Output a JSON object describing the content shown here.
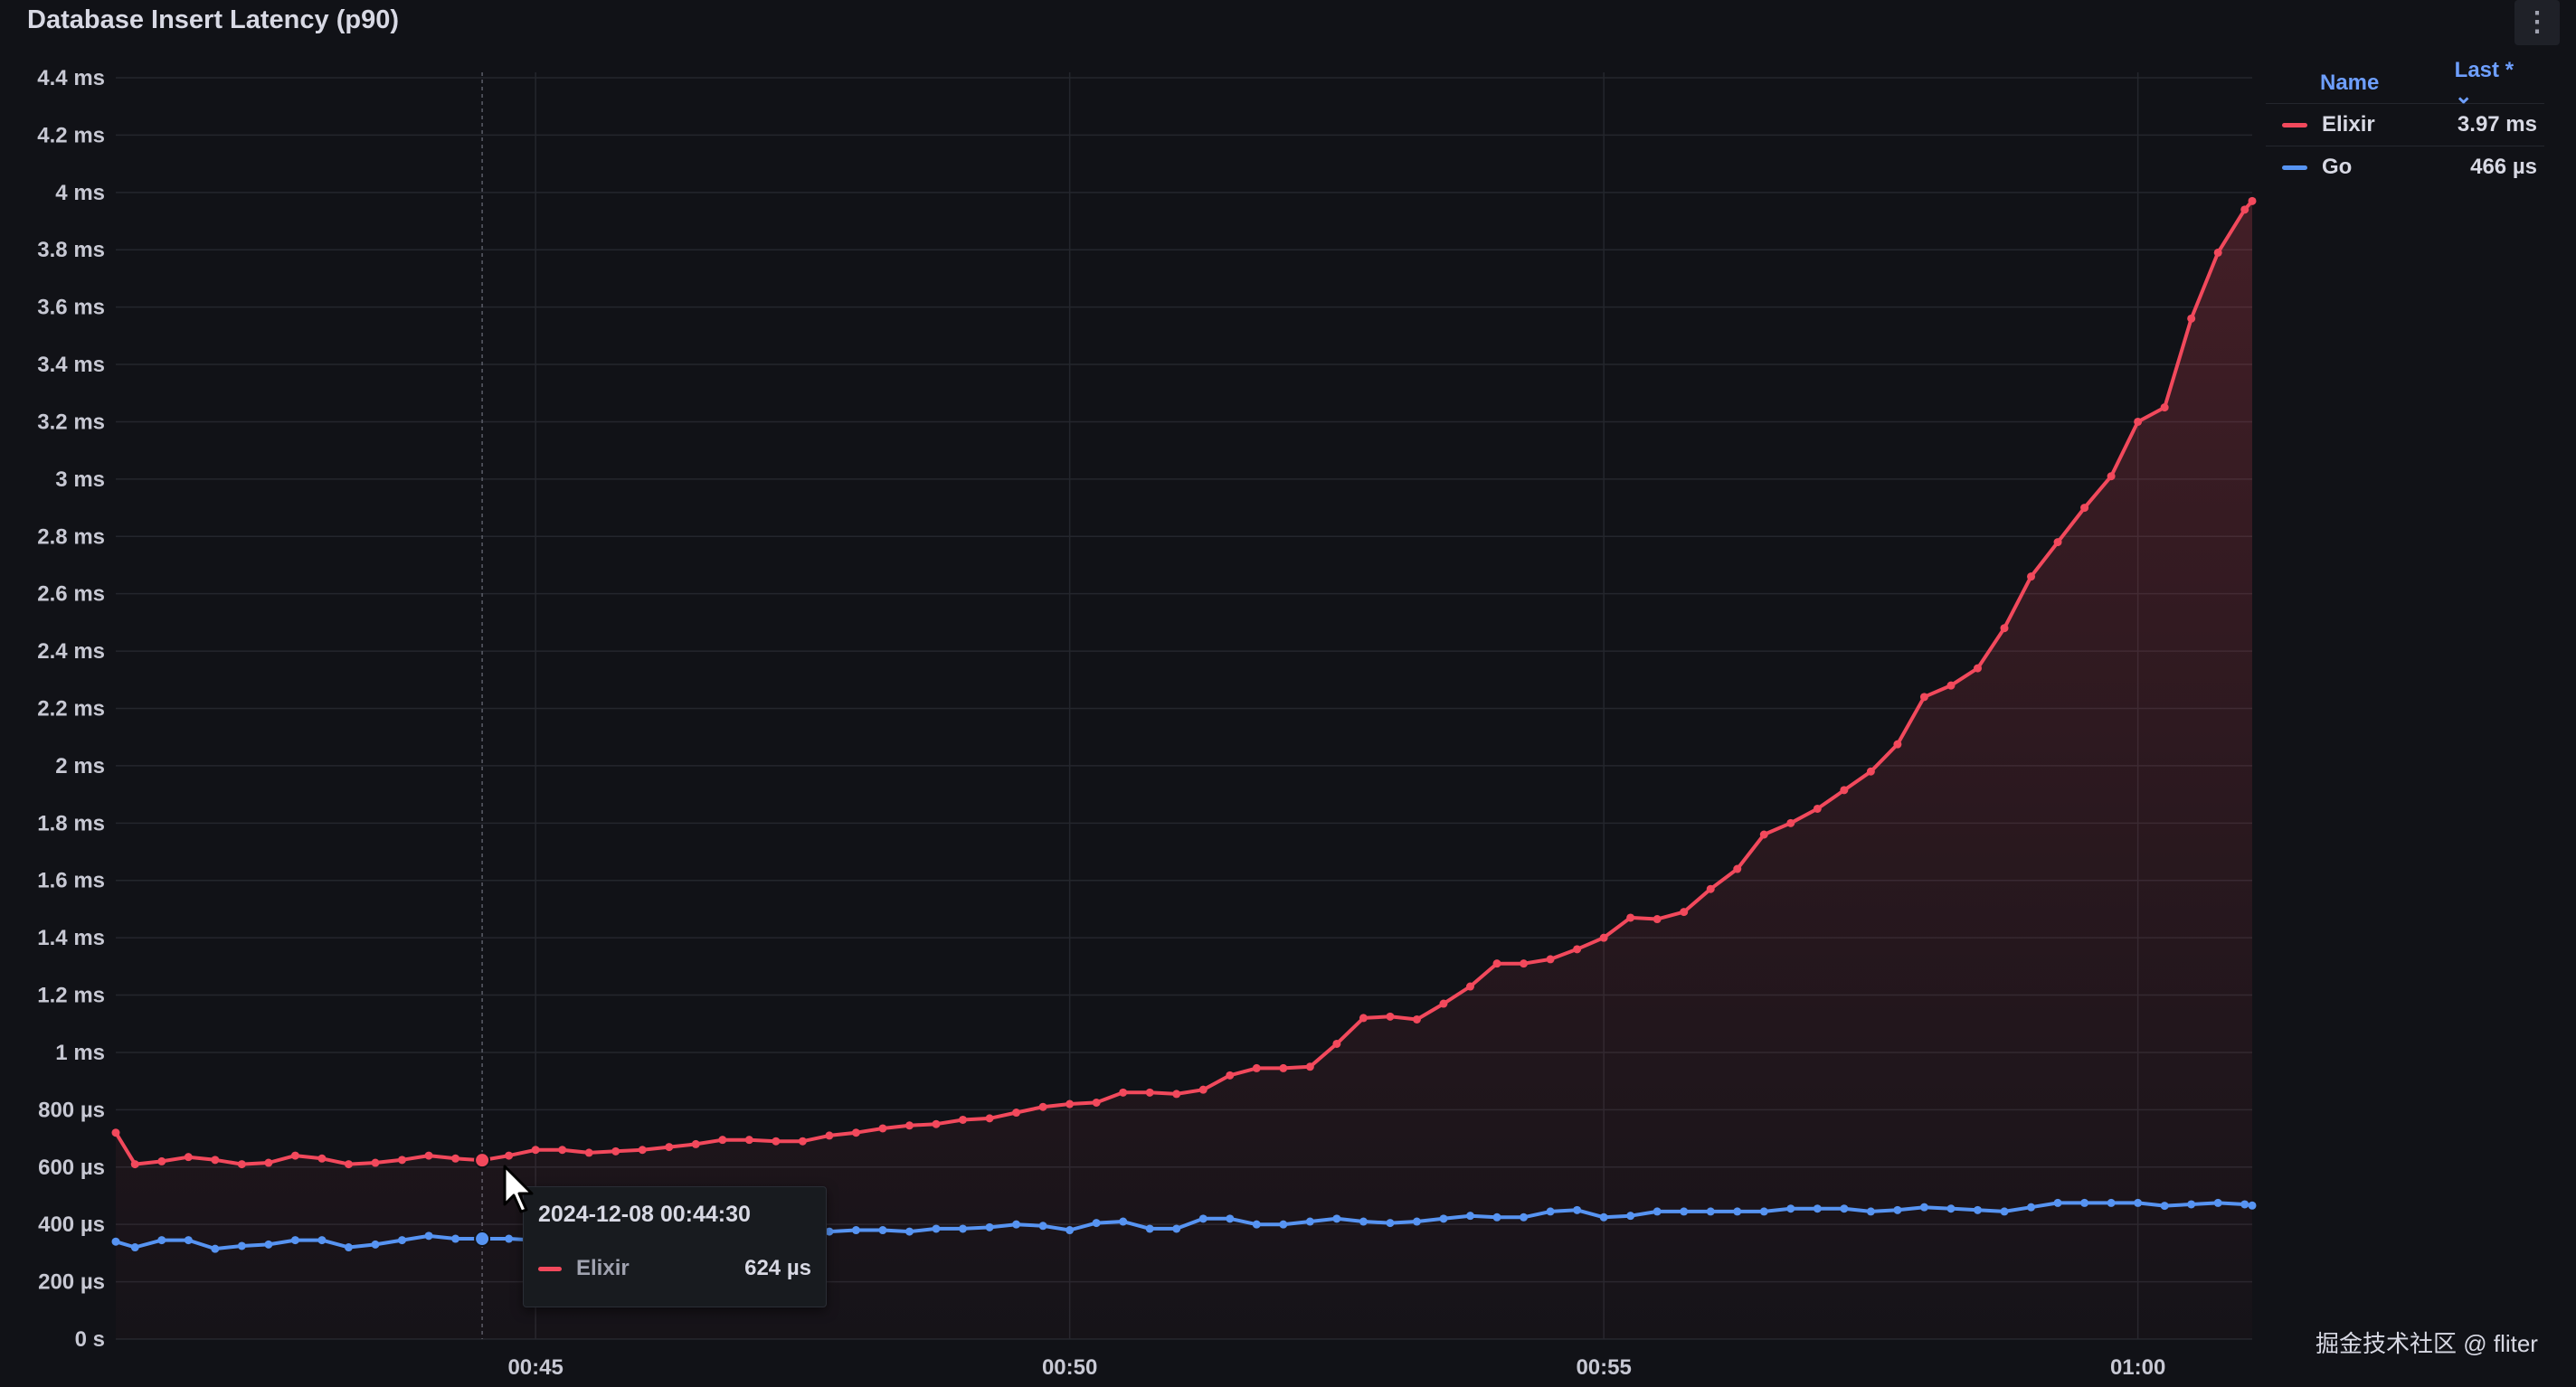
{
  "panel": {
    "title": "Database Insert Latency (p90)",
    "menu_icon": "vertical-ellipsis-icon"
  },
  "legend": {
    "col_name": "Name",
    "col_last": "Last * ⌄",
    "items": [
      {
        "name": "Elixir",
        "last": "3.97 ms",
        "color": "#f2495c"
      },
      {
        "name": "Go",
        "last": "466 µs",
        "color": "#5794f2"
      }
    ]
  },
  "tooltip": {
    "time": "2024-12-08 00:44:30",
    "series": "Elixir",
    "value": "624 µs"
  },
  "watermark": "掘金技术社区 @ fliter",
  "chart_data": {
    "type": "line",
    "xlabel": "",
    "ylabel": "",
    "x_ticks": [
      "00:45",
      "00:50",
      "00:55",
      "01:00"
    ],
    "x_range_minutes": [
      41.07,
      61.07
    ],
    "y_ticks": [
      "0 s",
      "200 µs",
      "400 µs",
      "600 µs",
      "800 µs",
      "1 ms",
      "1.2 ms",
      "1.4 ms",
      "1.6 ms",
      "1.8 ms",
      "2 ms",
      "2.2 ms",
      "2.4 ms",
      "2.6 ms",
      "2.8 ms",
      "3 ms",
      "3.2 ms",
      "3.4 ms",
      "3.6 ms",
      "3.8 ms",
      "4 ms",
      "4.2 ms",
      "4.4 ms"
    ],
    "ylim_us": [
      0,
      4400
    ],
    "grid": true,
    "legend_position": "right",
    "series": [
      {
        "name": "Elixir",
        "color": "#f2495c",
        "fill": true,
        "x_minutes": [
          41.07,
          41.25,
          41.5,
          41.75,
          42,
          42.25,
          42.5,
          42.75,
          43,
          43.25,
          43.5,
          43.75,
          44,
          44.25,
          44.5,
          44.75,
          45,
          45.25,
          45.5,
          45.75,
          46,
          46.25,
          46.5,
          46.75,
          47,
          47.25,
          47.5,
          47.75,
          48,
          48.25,
          48.5,
          48.75,
          49,
          49.25,
          49.5,
          49.75,
          50,
          50.25,
          50.5,
          50.75,
          51,
          51.25,
          51.5,
          51.75,
          52,
          52.25,
          52.5,
          52.75,
          53,
          53.25,
          53.5,
          53.75,
          54,
          54.25,
          54.5,
          54.75,
          55,
          55.25,
          55.5,
          55.75,
          56,
          56.25,
          56.5,
          56.75,
          57,
          57.25,
          57.5,
          57.75,
          58,
          58.25,
          58.5,
          58.75,
          59,
          59.25,
          59.5,
          59.75,
          60,
          60.25,
          60.5,
          60.75,
          61,
          61.07
        ],
        "values_us": [
          720,
          610,
          620,
          635,
          625,
          610,
          615,
          640,
          630,
          610,
          615,
          625,
          640,
          630,
          624,
          640,
          660,
          660,
          650,
          655,
          660,
          670,
          680,
          695,
          695,
          690,
          690,
          710,
          720,
          735,
          745,
          750,
          765,
          770,
          790,
          810,
          820,
          825,
          860,
          860,
          855,
          870,
          920,
          945,
          945,
          950,
          1030,
          1120,
          1125,
          1115,
          1170,
          1230,
          1310,
          1310,
          1325,
          1360,
          1400,
          1470,
          1465,
          1490,
          1570,
          1640,
          1760,
          1800,
          1850,
          1915,
          1980,
          2075,
          2240,
          2280,
          2340,
          2480,
          2660,
          2780,
          2900,
          3010,
          3200,
          3250,
          3560,
          3790,
          3940,
          3970
        ]
      },
      {
        "name": "Go",
        "color": "#5794f2",
        "fill": false,
        "x_minutes": [
          41.07,
          41.25,
          41.5,
          41.75,
          42,
          42.25,
          42.5,
          42.75,
          43,
          43.25,
          43.5,
          43.75,
          44,
          44.25,
          44.5,
          44.75,
          45,
          45.25,
          45.5,
          45.75,
          46,
          46.25,
          46.5,
          46.75,
          47,
          47.25,
          47.5,
          47.75,
          48,
          48.25,
          48.5,
          48.75,
          49,
          49.25,
          49.5,
          49.75,
          50,
          50.25,
          50.5,
          50.75,
          51,
          51.25,
          51.5,
          51.75,
          52,
          52.25,
          52.5,
          52.75,
          53,
          53.25,
          53.5,
          53.75,
          54,
          54.25,
          54.5,
          54.75,
          55,
          55.25,
          55.5,
          55.75,
          56,
          56.25,
          56.5,
          56.75,
          57,
          57.25,
          57.5,
          57.75,
          58,
          58.25,
          58.5,
          58.75,
          59,
          59.25,
          59.5,
          59.75,
          60,
          60.25,
          60.5,
          60.75,
          61,
          61.07
        ],
        "values_us": [
          340,
          320,
          345,
          345,
          315,
          325,
          330,
          345,
          345,
          320,
          330,
          345,
          360,
          350,
          350,
          350,
          345,
          355,
          360,
          355,
          360,
          365,
          370,
          370,
          365,
          365,
          370,
          375,
          380,
          380,
          375,
          385,
          385,
          390,
          400,
          395,
          380,
          405,
          410,
          385,
          385,
          420,
          420,
          400,
          400,
          410,
          420,
          410,
          405,
          410,
          420,
          430,
          425,
          425,
          445,
          450,
          425,
          430,
          445,
          445,
          445,
          445,
          445,
          455,
          455,
          455,
          445,
          450,
          460,
          455,
          450,
          445,
          460,
          475,
          475,
          475,
          475,
          465,
          470,
          475,
          470,
          466
        ]
      }
    ]
  }
}
